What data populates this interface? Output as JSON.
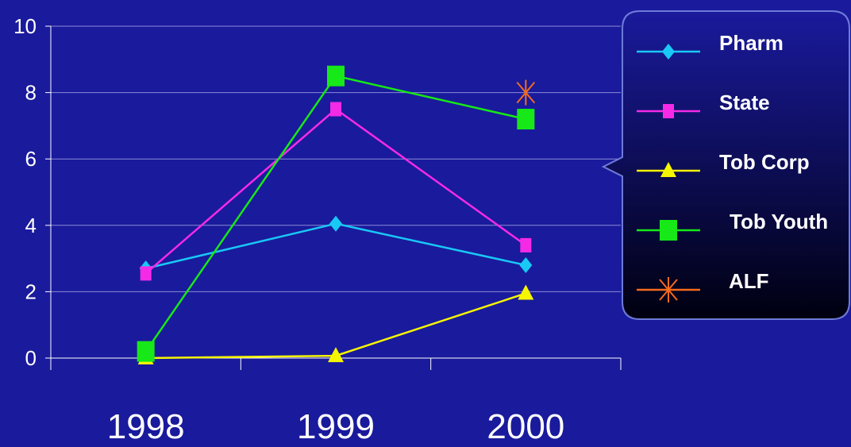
{
  "colors": {
    "background": "#1a1a9c",
    "axis": "#ffffff",
    "gridline": "#8a8ad8",
    "legend_bg_top": "#1a1a9c",
    "legend_bg_bottom": "#000010",
    "legend_border": "#6e7bd8"
  },
  "chart_data": {
    "type": "line",
    "title": "",
    "xlabel": "",
    "ylabel": "",
    "categories": [
      "1998",
      "1999",
      "2000"
    ],
    "y_ticks": [
      "0",
      "2",
      "4",
      "6",
      "8",
      "10"
    ],
    "ylim": [
      0,
      10
    ],
    "grid": true,
    "legend_position": "right",
    "series": [
      {
        "name": "Pharm",
        "values": [
          2.7,
          4.05,
          2.8
        ],
        "color": "#19c8f5",
        "marker": "diamond"
      },
      {
        "name": "State",
        "values": [
          2.55,
          7.5,
          3.4
        ],
        "color": "#f52ae6",
        "marker": "square"
      },
      {
        "name": "Tob Corp",
        "values": [
          0.0,
          0.07,
          1.95
        ],
        "color": "#f5f500",
        "marker": "triangle"
      },
      {
        "name": "Tob Youth",
        "values": [
          0.2,
          8.5,
          7.2
        ],
        "color": "#17e817",
        "marker": "square-large"
      },
      {
        "name": "ALF",
        "values": [
          null,
          null,
          8.0
        ],
        "color": "#f56a1c",
        "marker": "asterisk"
      }
    ]
  }
}
